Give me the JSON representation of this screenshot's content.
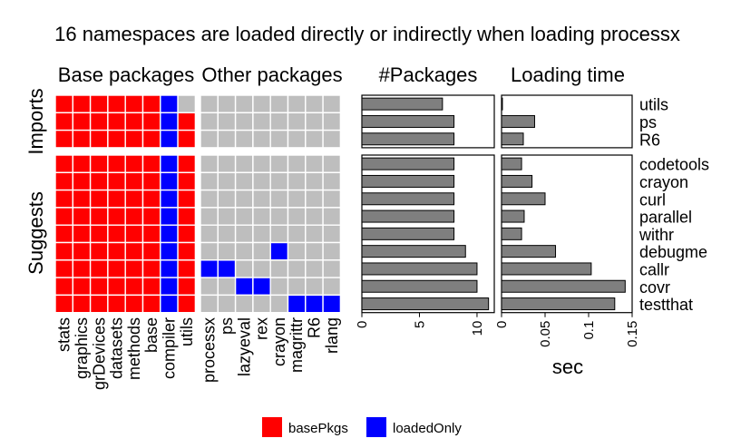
{
  "chart_data": {
    "type": "heatmap",
    "title": "16 namespaces are loaded directly or indirectly when loading processx",
    "panels": {
      "base": "Base packages",
      "other": "Other packages",
      "count": "#Packages",
      "time": "Loading time"
    },
    "row_groups": [
      "Imports",
      "Suggests"
    ],
    "rows": [
      "utils",
      "ps",
      "R6",
      "codetools",
      "crayon",
      "curl",
      "parallel",
      "withr",
      "debugme",
      "callr",
      "covr",
      "testthat"
    ],
    "row_group_of": [
      "Imports",
      "Imports",
      "Imports",
      "Suggests",
      "Suggests",
      "Suggests",
      "Suggests",
      "Suggests",
      "Suggests",
      "Suggests",
      "Suggests",
      "Suggests"
    ],
    "base_columns": [
      "stats",
      "graphics",
      "grDevices",
      "datasets",
      "methods",
      "base",
      "compiler",
      "utils"
    ],
    "other_columns": [
      "processx",
      "ps",
      "lazyeval",
      "rex",
      "crayon",
      "magrittr",
      "R6",
      "rlang"
    ],
    "base_matrix": [
      [
        "basePkgs",
        "basePkgs",
        "basePkgs",
        "basePkgs",
        "basePkgs",
        "basePkgs",
        "loadedOnly",
        ""
      ],
      [
        "basePkgs",
        "basePkgs",
        "basePkgs",
        "basePkgs",
        "basePkgs",
        "basePkgs",
        "loadedOnly",
        "basePkgs"
      ],
      [
        "basePkgs",
        "basePkgs",
        "basePkgs",
        "basePkgs",
        "basePkgs",
        "basePkgs",
        "loadedOnly",
        "basePkgs"
      ],
      [
        "basePkgs",
        "basePkgs",
        "basePkgs",
        "basePkgs",
        "basePkgs",
        "basePkgs",
        "loadedOnly",
        "basePkgs"
      ],
      [
        "basePkgs",
        "basePkgs",
        "basePkgs",
        "basePkgs",
        "basePkgs",
        "basePkgs",
        "loadedOnly",
        "basePkgs"
      ],
      [
        "basePkgs",
        "basePkgs",
        "basePkgs",
        "basePkgs",
        "basePkgs",
        "basePkgs",
        "loadedOnly",
        "basePkgs"
      ],
      [
        "basePkgs",
        "basePkgs",
        "basePkgs",
        "basePkgs",
        "basePkgs",
        "basePkgs",
        "loadedOnly",
        "basePkgs"
      ],
      [
        "basePkgs",
        "basePkgs",
        "basePkgs",
        "basePkgs",
        "basePkgs",
        "basePkgs",
        "loadedOnly",
        "basePkgs"
      ],
      [
        "basePkgs",
        "basePkgs",
        "basePkgs",
        "basePkgs",
        "basePkgs",
        "basePkgs",
        "loadedOnly",
        "basePkgs"
      ],
      [
        "basePkgs",
        "basePkgs",
        "basePkgs",
        "basePkgs",
        "basePkgs",
        "basePkgs",
        "loadedOnly",
        "basePkgs"
      ],
      [
        "basePkgs",
        "basePkgs",
        "basePkgs",
        "basePkgs",
        "basePkgs",
        "basePkgs",
        "loadedOnly",
        "basePkgs"
      ],
      [
        "basePkgs",
        "basePkgs",
        "basePkgs",
        "basePkgs",
        "basePkgs",
        "basePkgs",
        "loadedOnly",
        "basePkgs"
      ]
    ],
    "other_matrix": [
      [
        "",
        "",
        "",
        "",
        "",
        "",
        "",
        ""
      ],
      [
        "",
        "",
        "",
        "",
        "",
        "",
        "",
        ""
      ],
      [
        "",
        "",
        "",
        "",
        "",
        "",
        "",
        ""
      ],
      [
        "",
        "",
        "",
        "",
        "",
        "",
        "",
        ""
      ],
      [
        "",
        "",
        "",
        "",
        "",
        "",
        "",
        ""
      ],
      [
        "",
        "",
        "",
        "",
        "",
        "",
        "",
        ""
      ],
      [
        "",
        "",
        "",
        "",
        "",
        "",
        "",
        ""
      ],
      [
        "",
        "",
        "",
        "",
        "",
        "",
        "",
        ""
      ],
      [
        "",
        "",
        "",
        "",
        "loadedOnly",
        "",
        "",
        ""
      ],
      [
        "loadedOnly",
        "loadedOnly",
        "",
        "",
        "",
        "",
        "",
        ""
      ],
      [
        "",
        "",
        "loadedOnly",
        "loadedOnly",
        "",
        "",
        "",
        ""
      ],
      [
        "",
        "",
        "",
        "",
        "",
        "loadedOnly",
        "loadedOnly",
        "loadedOnly"
      ]
    ],
    "package_counts": [
      7,
      8,
      8,
      8,
      8,
      8,
      8,
      8,
      9,
      10,
      10,
      11
    ],
    "count_axis": {
      "ticks": [
        0,
        5,
        10
      ],
      "range": [
        0,
        11.5
      ]
    },
    "loading_time": [
      0.001,
      0.038,
      0.025,
      0.023,
      0.035,
      0.05,
      0.026,
      0.023,
      0.062,
      0.103,
      0.142,
      0.13
    ],
    "time_axis": {
      "ticks": [
        "0",
        "0.05",
        "0.1",
        "0.15"
      ],
      "tick_values": [
        0,
        0.05,
        0.1,
        0.15
      ],
      "range": [
        0,
        0.15
      ],
      "label": "sec"
    },
    "legend": [
      {
        "label": "basePkgs",
        "key": "basePkgs"
      },
      {
        "label": "loadedOnly",
        "key": "loadedOnly"
      }
    ],
    "legend_placement": "bottom",
    "grid": false
  },
  "colors": {
    "basePkgs": "#ff0000",
    "loadedOnly": "#0000ff",
    "empty": "#bebebe",
    "bar_fill": "#7f7f7f",
    "bar_stroke": "#000000",
    "tile_border": "#ffffff"
  }
}
